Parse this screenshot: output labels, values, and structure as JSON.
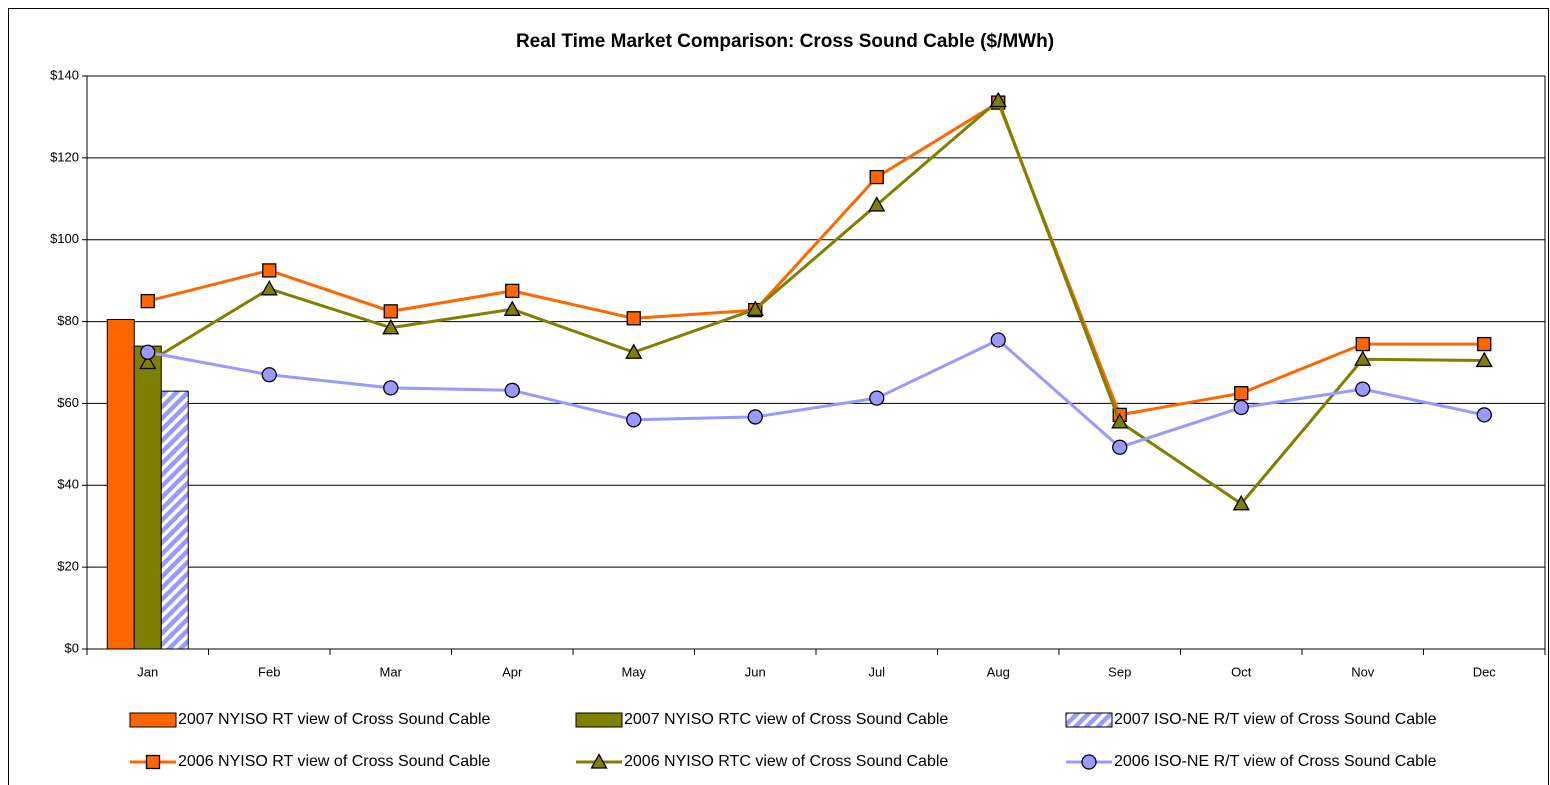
{
  "chart_data": {
    "type": "bar_line",
    "title": "Real Time Market Comparison: Cross Sound Cable ($/MWh)",
    "categories": [
      "Jan",
      "Feb",
      "Mar",
      "Apr",
      "May",
      "Jun",
      "Jul",
      "Aug",
      "Sep",
      "Oct",
      "Nov",
      "Dec"
    ],
    "ylim": [
      0,
      140
    ],
    "yticks": [
      {
        "value": 0,
        "label": "$0"
      },
      {
        "value": 20,
        "label": "$20"
      },
      {
        "value": 40,
        "label": "$40"
      },
      {
        "value": 60,
        "label": "$60"
      },
      {
        "value": 80,
        "label": "$80"
      },
      {
        "value": 100,
        "label": "$100"
      },
      {
        "value": 120,
        "label": "$120"
      },
      {
        "value": 140,
        "label": "$140"
      }
    ],
    "grid": true,
    "legend": "bottom",
    "series": [
      {
        "name": "2007 NYISO RT view of Cross Sound Cable",
        "type": "bar",
        "color": "#ff6600",
        "values": [
          80.5,
          null,
          null,
          null,
          null,
          null,
          null,
          null,
          null,
          null,
          null,
          null
        ]
      },
      {
        "name": "2007 NYISO RTC view of Cross Sound Cable",
        "type": "bar",
        "color": "#808000",
        "values": [
          74,
          null,
          null,
          null,
          null,
          null,
          null,
          null,
          null,
          null,
          null,
          null
        ]
      },
      {
        "name": "2007 ISO-NE R/T view of Cross Sound Cable",
        "type": "bar",
        "color": "#9999ff",
        "pattern": "hatch",
        "values": [
          63,
          null,
          null,
          null,
          null,
          null,
          null,
          null,
          null,
          null,
          null,
          null
        ]
      },
      {
        "name": "2006 NYISO RT view of Cross Sound Cable",
        "type": "line",
        "color": "#ff6600",
        "marker": "square",
        "values": [
          85,
          92.5,
          82.5,
          87.5,
          80.8,
          82.8,
          115.3,
          133.5,
          57.2,
          62.5,
          74.5,
          74.5
        ]
      },
      {
        "name": "2006 NYISO RTC view of Cross Sound Cable",
        "type": "line",
        "color": "#808000",
        "marker": "triangle",
        "values": [
          70,
          88,
          78.5,
          83,
          72.5,
          83,
          108.5,
          134,
          55.5,
          35.5,
          70.8,
          70.5
        ]
      },
      {
        "name": "2006 ISO-NE R/T view of Cross Sound Cable",
        "type": "line",
        "color": "#9999ff",
        "marker": "circle",
        "values": [
          72.5,
          67,
          63.8,
          63.2,
          56,
          56.7,
          61.3,
          75.5,
          49.3,
          59,
          63.5,
          57.2
        ]
      }
    ]
  }
}
